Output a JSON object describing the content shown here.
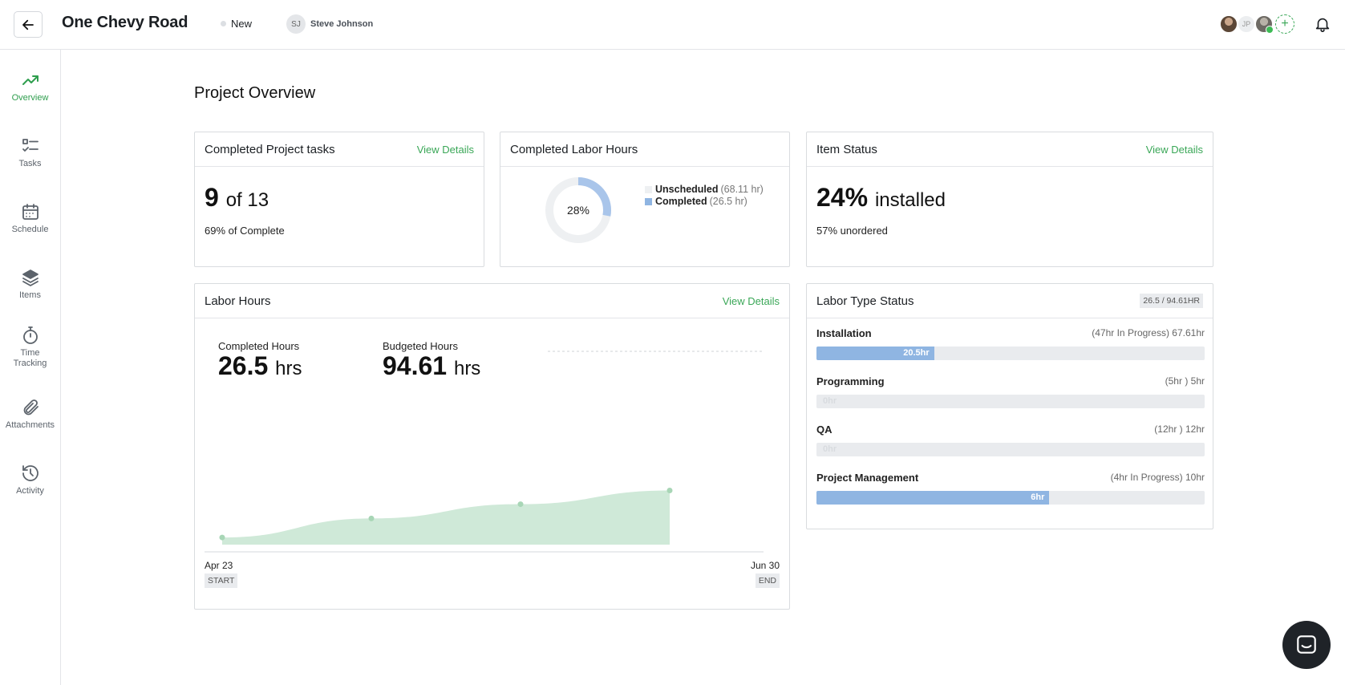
{
  "header": {
    "project_title": "One Chevy Road",
    "status": "New",
    "owner_initials": "SJ",
    "owner_name": "Steve Johnson",
    "collaborator_initials": "JP"
  },
  "sidebar": {
    "items": [
      {
        "label": "Overview",
        "icon": "trend-up-icon"
      },
      {
        "label": "Tasks",
        "icon": "checklist-icon"
      },
      {
        "label": "Schedule",
        "icon": "calendar-icon"
      },
      {
        "label": "Items",
        "icon": "layers-icon"
      },
      {
        "label": "Time",
        "label2": "Tracking",
        "icon": "stopwatch-icon"
      },
      {
        "label": "Attachments",
        "icon": "paperclip-icon"
      },
      {
        "label": "Activity",
        "icon": "history-icon"
      }
    ]
  },
  "main": {
    "title": "Project Overview",
    "tasks_card": {
      "title": "Completed Project tasks",
      "link": "View Details",
      "done": "9",
      "of_total": "of 13",
      "sub": "69% of Complete"
    },
    "labor_hours_card": {
      "title": "Completed Labor Hours",
      "percent_label": "28%",
      "percent": 28,
      "legend": [
        {
          "name": "Unscheduled",
          "value": "(68.11 hr)",
          "color": "#eef0f2"
        },
        {
          "name": "Completed",
          "value": "(26.5 hr)",
          "color": "#8fb5e2"
        }
      ]
    },
    "item_status_card": {
      "title": "Item Status",
      "link": "View Details",
      "percent": "24%",
      "word": "installed",
      "sub": "57% unordered"
    },
    "labor_chart_card": {
      "title": "Labor Hours",
      "link": "View Details",
      "completed_label": "Completed Hours",
      "completed_value": "26.5",
      "budgeted_label": "Budgeted Hours",
      "budgeted_value": "94.61",
      "unit": "hrs",
      "start_date": "Apr 23",
      "start_tag": "START",
      "end_date": "Jun 30",
      "end_tag": "END"
    },
    "labor_type_card": {
      "title": "Labor Type Status",
      "badge": "26.5 / 94.61HR",
      "rows": [
        {
          "name": "Installation",
          "hours": "(47hr In Progress) 67.61hr",
          "bar_label": "20.5hr",
          "fraction": 0.303
        },
        {
          "name": "Programming",
          "hours": "(5hr ) 5hr",
          "bar_label": "0hr",
          "fraction": 0
        },
        {
          "name": "QA",
          "hours": "(12hr ) 12hr",
          "bar_label": "0hr",
          "fraction": 0
        },
        {
          "name": "Project Management",
          "hours": "(4hr In Progress) 10hr",
          "bar_label": "6hr",
          "fraction": 0.6
        }
      ]
    }
  },
  "chart_data": {
    "type": "area",
    "title": "",
    "x": [
      0,
      1,
      2,
      3
    ],
    "series": [
      {
        "values": [
          3.5,
          12.8,
          19.8,
          26.5
        ]
      }
    ],
    "budget_line": 94.61,
    "colors": {
      "fill": "#cfe9d8",
      "point": "#a8d6b6",
      "budget": "#cfd3d7"
    }
  },
  "colors": {
    "accent": "#3aa757",
    "bar_fill": "#8fb5e2",
    "bar_track": "#e9ebee"
  }
}
